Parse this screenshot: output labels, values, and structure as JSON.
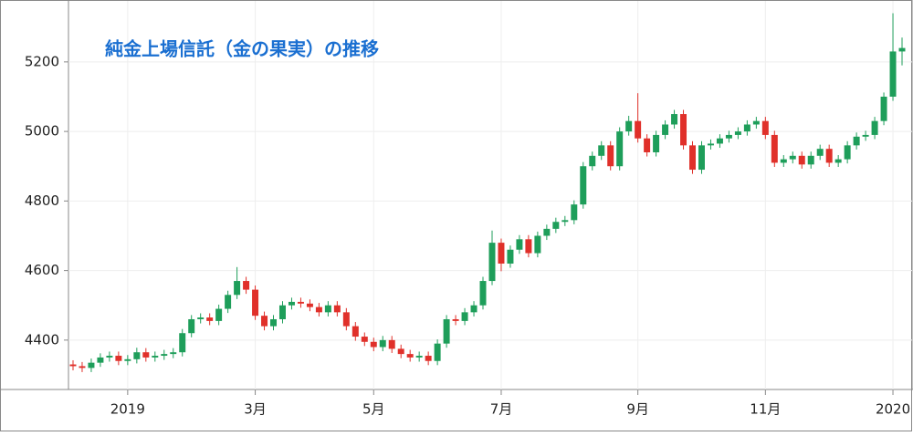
{
  "chart_data": {
    "type": "candlestick",
    "title": "純金上場信託（金の果実）の推移",
    "categories": [
      null,
      null,
      null,
      null,
      null,
      null,
      "2019",
      null,
      null,
      null,
      null,
      null,
      null,
      null,
      null,
      null,
      null,
      null,
      null,
      null,
      "3月",
      null,
      null,
      null,
      null,
      null,
      null,
      null,
      null,
      null,
      null,
      null,
      null,
      "5月",
      null,
      null,
      null,
      null,
      null,
      null,
      null,
      null,
      null,
      null,
      null,
      null,
      null,
      "7月",
      null,
      null,
      null,
      null,
      null,
      null,
      null,
      null,
      null,
      null,
      null,
      null,
      null,
      null,
      "9月",
      null,
      null,
      null,
      null,
      null,
      null,
      null,
      null,
      null,
      null,
      null,
      null,
      null,
      "11月",
      null,
      null,
      null,
      null,
      null,
      null,
      null,
      null,
      null,
      null,
      null,
      null,
      null,
      "2020",
      null
    ],
    "open": [
      4330,
      4325,
      4320,
      4335,
      4350,
      4355,
      4340,
      4345,
      4365,
      4350,
      4355,
      4360,
      4365,
      4420,
      4460,
      4465,
      4455,
      4490,
      4530,
      4570,
      4545,
      4470,
      4440,
      4460,
      4500,
      4510,
      4505,
      4495,
      4480,
      4500,
      4480,
      4440,
      4410,
      4395,
      4380,
      4400,
      4375,
      4360,
      4350,
      4355,
      4340,
      4390,
      4460,
      4455,
      4480,
      4500,
      4570,
      4680,
      4620,
      4660,
      4690,
      4650,
      4700,
      4720,
      4740,
      4745,
      4790,
      4900,
      4930,
      4960,
      4900,
      5000,
      5030,
      4980,
      4940,
      4990,
      5020,
      5050,
      4960,
      4890,
      4960,
      4965,
      4980,
      4990,
      5000,
      5020,
      5030,
      4990,
      4910,
      4920,
      4930,
      4905,
      4930,
      4950,
      4910,
      4920,
      4960,
      4985,
      4990,
      5030,
      5100,
      5230
    ],
    "high": [
      4342,
      4337,
      4347,
      4362,
      4367,
      4367,
      4357,
      4378,
      4377,
      4367,
      4372,
      4377,
      4432,
      4472,
      4477,
      4477,
      4502,
      4542,
      4610,
      4582,
      4557,
      4482,
      4472,
      4512,
      4522,
      4522,
      4517,
      4507,
      4512,
      4512,
      4492,
      4452,
      4422,
      4407,
      4412,
      4412,
      4387,
      4372,
      4367,
      4367,
      4402,
      4472,
      4472,
      4492,
      4512,
      4582,
      4715,
      4692,
      4672,
      4702,
      4702,
      4712,
      4732,
      4752,
      4757,
      4802,
      4912,
      4942,
      4972,
      4972,
      5012,
      5045,
      5110,
      4992,
      5002,
      5032,
      5062,
      5062,
      4972,
      4972,
      4977,
      4992,
      5002,
      5012,
      5032,
      5042,
      5042,
      5002,
      4932,
      4942,
      4942,
      4942,
      4962,
      4962,
      4932,
      4972,
      4997,
      5002,
      5042,
      5112,
      5340,
      5270
    ],
    "low": [
      4313,
      4308,
      4308,
      4323,
      4338,
      4328,
      4328,
      4333,
      4338,
      4338,
      4343,
      4348,
      4353,
      4408,
      4448,
      4443,
      4443,
      4478,
      4518,
      4533,
      4458,
      4428,
      4428,
      4448,
      4488,
      4493,
      4483,
      4468,
      4468,
      4468,
      4428,
      4398,
      4383,
      4368,
      4368,
      4363,
      4348,
      4338,
      4338,
      4328,
      4328,
      4378,
      4443,
      4443,
      4468,
      4488,
      4558,
      4598,
      4608,
      4648,
      4638,
      4638,
      4688,
      4708,
      4728,
      4733,
      4778,
      4888,
      4918,
      4888,
      4888,
      4988,
      4968,
      4928,
      4928,
      4978,
      5008,
      4948,
      4878,
      4878,
      4948,
      4953,
      4968,
      4978,
      4988,
      5008,
      4978,
      4898,
      4898,
      4908,
      4893,
      4893,
      4918,
      4898,
      4898,
      4908,
      4948,
      4973,
      4978,
      5018,
      5088,
      5190
    ],
    "close": [
      4325,
      4320,
      4335,
      4350,
      4355,
      4340,
      4345,
      4365,
      4350,
      4355,
      4360,
      4365,
      4420,
      4460,
      4465,
      4455,
      4490,
      4530,
      4570,
      4545,
      4470,
      4440,
      4460,
      4500,
      4510,
      4505,
      4495,
      4480,
      4500,
      4480,
      4440,
      4410,
      4395,
      4380,
      4400,
      4375,
      4360,
      4350,
      4355,
      4340,
      4390,
      4460,
      4455,
      4480,
      4500,
      4570,
      4680,
      4620,
      4660,
      4690,
      4650,
      4700,
      4720,
      4740,
      4745,
      4790,
      4900,
      4930,
      4960,
      4900,
      5000,
      5030,
      4980,
      4940,
      4990,
      5020,
      5050,
      4960,
      4890,
      4960,
      4965,
      4980,
      4990,
      5000,
      5020,
      5030,
      4990,
      4910,
      4920,
      4930,
      4905,
      4930,
      4950,
      4910,
      4920,
      4960,
      4985,
      4990,
      5030,
      5100,
      5230,
      5240
    ],
    "up_color": "#1e9e5a",
    "down_color": "#e0302a",
    "ylim": [
      4258,
      5378
    ],
    "yticks": [
      4400,
      4600,
      4800,
      5000,
      5200
    ],
    "grid": true
  }
}
